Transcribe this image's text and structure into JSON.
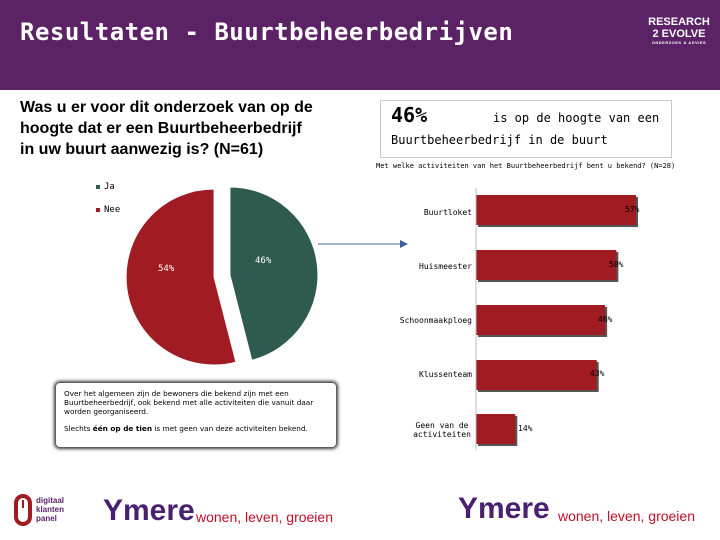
{
  "header": {
    "title": "Resultaten - Buurtbeheerbedrijven",
    "brand_line1": "RESEARCH",
    "brand_line2": "2 EVOLVE",
    "brand_sub": "ONDERZOEK & ADVIES"
  },
  "question": "Was u er voor dit onderzoek van op de hoogte dat er een Buurtbeheerbedrijf in uw buurt aanwezig is? (N=61)",
  "callout": {
    "big": "46%",
    "rest1": "is op de hoogte van een",
    "rest2": "Buurtbeheerbedrijf in de buurt"
  },
  "note": {
    "p1": "Over het algemeen zijn de bewoners die bekend zijn met een Buurtbeheerbedrijf, ook bekend met alle activiteiten die vanuit daar worden georganiseerd.",
    "p2_pre": "Slechts ",
    "p2_bold": "één op de tien",
    "p2_post": " is met geen van deze activiteiten bekend."
  },
  "footer": {
    "panel_line1": "digitaal",
    "panel_line2": "klanten",
    "panel_line3": "panel",
    "ymere": "Ymere",
    "slogan": "wonen, leven, groeien"
  },
  "colors": {
    "header": "#5b2266",
    "ja": "#2e5a4f",
    "nee": "#a11b22",
    "bar": "#a11b22"
  },
  "chart_data": [
    {
      "type": "pie",
      "categories": [
        "Ja",
        "Nee"
      ],
      "values": [
        46,
        54
      ],
      "labels": [
        "46%",
        "54%"
      ],
      "legend": "top-left"
    },
    {
      "type": "bar",
      "orientation": "horizontal",
      "title": "Met welke activiteiten van het Buurtbeheerbedrijf bent u bekend? (N=28)",
      "categories": [
        "Buurtloket",
        "Huismeester",
        "Schoonmaakploeg",
        "Klussenteam",
        "Geen van de activiteiten"
      ],
      "values": [
        57,
        50,
        46,
        43,
        14
      ],
      "labels": [
        "57%",
        "50%",
        "46%",
        "43%",
        "14%"
      ]
    }
  ]
}
